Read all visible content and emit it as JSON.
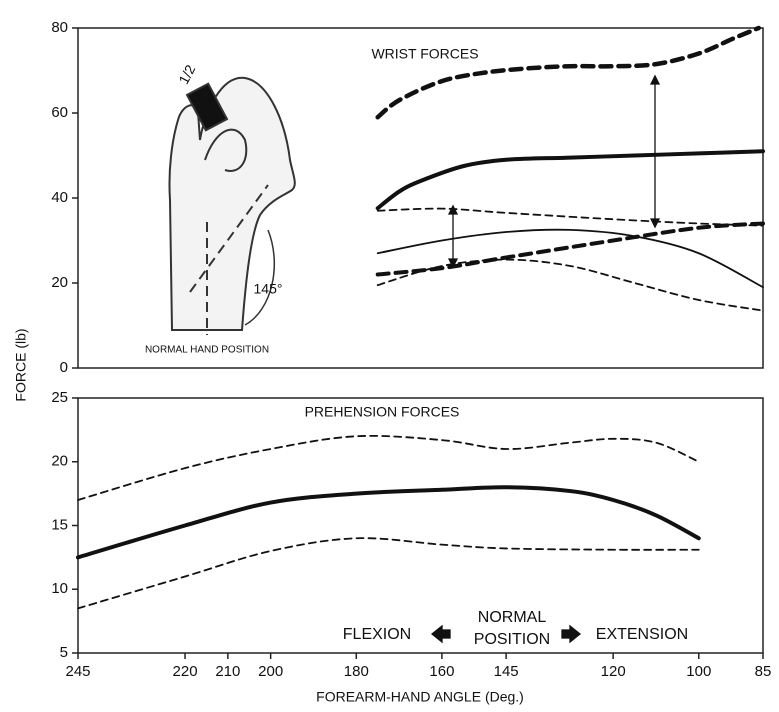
{
  "y_label": "FORCE (lb)",
  "x_label": "FOREARM-HAND ANGLE (Deg.)",
  "chart_data": [
    {
      "type": "line",
      "annotations": [
        "WRIST FORCES",
        "1/2",
        "145°",
        "NORMAL HAND POSITION"
      ],
      "xlim": [
        245,
        85
      ],
      "ylim": [
        0,
        80
      ],
      "yticks": [
        0,
        20,
        40,
        60,
        80
      ],
      "series": [
        {
          "color": "#111",
          "width": 4.5,
          "dash": true,
          "x": [
            175,
            170,
            160,
            150,
            140,
            130,
            120,
            110,
            100,
            92,
            86
          ],
          "values": [
            59,
            63,
            67.5,
            69.5,
            70.5,
            71,
            71,
            71.5,
            74,
            77.5,
            80
          ]
        },
        {
          "color": "#111",
          "width": 4,
          "dash": false,
          "x": [
            175,
            170,
            165,
            155,
            145,
            130,
            115,
            100,
            85
          ],
          "values": [
            37.6,
            41.5,
            44,
            47.5,
            49,
            49.5,
            50,
            50.5,
            51
          ]
        },
        {
          "color": "#111",
          "width": 1.8,
          "dash": true,
          "x": [
            175,
            160,
            145,
            120,
            100,
            85
          ],
          "values": [
            37,
            37.5,
            36.5,
            35,
            34,
            33.5
          ]
        },
        {
          "color": "#111",
          "width": 1.8,
          "dash": false,
          "x": [
            175,
            160,
            145,
            130,
            115,
            100,
            85
          ],
          "values": [
            27,
            30,
            32,
            32.5,
            31,
            27,
            19
          ]
        },
        {
          "color": "#111",
          "width": 4,
          "dash": true,
          "x": [
            175,
            160,
            145,
            120,
            100,
            85
          ],
          "values": [
            22,
            23.5,
            26,
            30,
            33,
            34
          ]
        },
        {
          "color": "#111",
          "width": 1.8,
          "dash": true,
          "x": [
            175,
            160,
            145,
            130,
            115,
            100,
            85
          ],
          "values": [
            19.5,
            24,
            25.5,
            24,
            20,
            16,
            13.5
          ]
        }
      ]
    },
    {
      "type": "line",
      "annotations": [
        "PREHENSION FORCES",
        "FLEXION",
        "NORMAL",
        "POSITION",
        "EXTENSION"
      ],
      "xlim": [
        245,
        85
      ],
      "xticks": [
        245,
        220,
        210,
        200,
        180,
        160,
        145,
        120,
        100,
        85
      ],
      "ylim": [
        5,
        25
      ],
      "yticks": [
        5,
        10,
        15,
        20,
        25
      ],
      "series": [
        {
          "color": "#111",
          "width": 1.8,
          "dash": true,
          "x": [
            245,
            220,
            200,
            180,
            160,
            145,
            130,
            120,
            110,
            100
          ],
          "values": [
            17,
            19.5,
            21,
            22,
            21.7,
            21,
            21.5,
            21.8,
            21.5,
            20
          ]
        },
        {
          "color": "#111",
          "width": 4,
          "dash": false,
          "x": [
            245,
            220,
            200,
            180,
            160,
            145,
            130,
            120,
            110,
            100
          ],
          "values": [
            12.5,
            15,
            16.8,
            17.5,
            17.8,
            18,
            17.7,
            17,
            15.8,
            14
          ]
        },
        {
          "color": "#111",
          "width": 1.8,
          "dash": true,
          "x": [
            245,
            220,
            200,
            180,
            160,
            145,
            120,
            100
          ],
          "values": [
            8.5,
            11,
            13,
            14,
            13.5,
            13.2,
            13.1,
            13.1
          ]
        }
      ]
    }
  ]
}
